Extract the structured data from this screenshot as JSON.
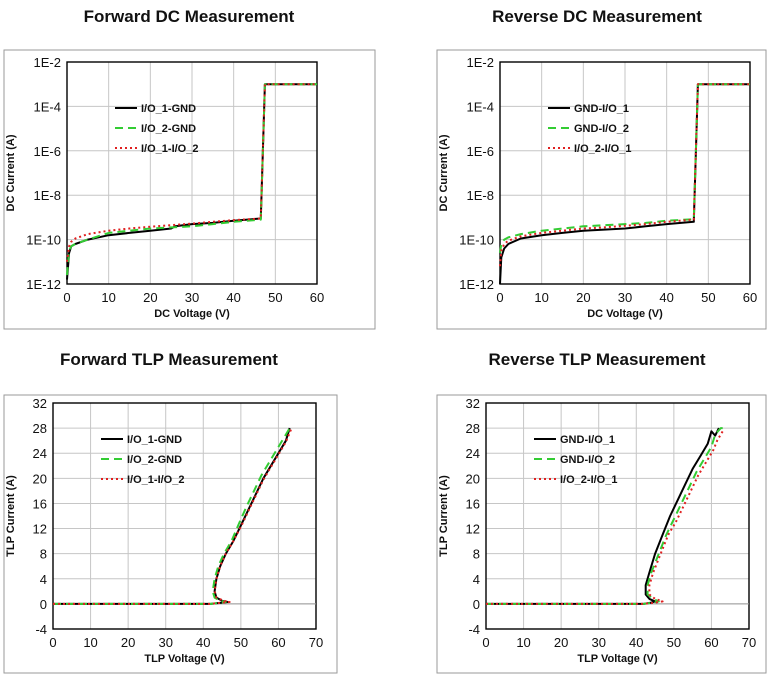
{
  "chart_data": [
    {
      "type": "line",
      "title": "Forward DC Measurement",
      "xlabel": "DC Voltage (V)",
      "ylabel": "DC Current (A)",
      "xlim": [
        0,
        60
      ],
      "ylim": [
        -12,
        -2
      ],
      "y_scale": "log10",
      "x_ticks": [
        "0",
        "10",
        "20",
        "30",
        "40",
        "50",
        "60"
      ],
      "y_ticks": [
        "1E-12",
        "1E-10",
        "1E-8",
        "1E-6",
        "1E-4",
        "1E-2"
      ],
      "grid": true,
      "legend": "top-left",
      "series": [
        {
          "name": "I/O_1-GND",
          "color": "#000000",
          "style": "solid",
          "x": [
            0,
            0.5,
            1,
            2,
            5,
            10,
            15,
            20,
            25,
            26,
            30,
            35,
            40,
            46.5,
            47.5,
            50,
            55,
            60
          ],
          "y": [
            -11.8,
            -10.6,
            -10.3,
            -10.2,
            -10.0,
            -9.8,
            -9.7,
            -9.6,
            -9.5,
            -9.4,
            -9.3,
            -9.25,
            -9.15,
            -9.05,
            -3.0,
            -3.0,
            -3.0,
            -3.0
          ]
        },
        {
          "name": "I/O_2-GND",
          "color": "#33CC33",
          "style": "dashed",
          "x": [
            0,
            0.5,
            1,
            2,
            5,
            10,
            15,
            20,
            25,
            30,
            35,
            40,
            46.5,
            47.5,
            50,
            55,
            60
          ],
          "y": [
            -11.6,
            -10.5,
            -10.3,
            -10.2,
            -10.0,
            -9.7,
            -9.6,
            -9.5,
            -9.45,
            -9.4,
            -9.3,
            -9.2,
            -9.1,
            -3.0,
            -3.0,
            -3.0,
            -3.0
          ]
        },
        {
          "name": "I/O_1-I/O_2",
          "color": "#E02020",
          "style": "dotted",
          "x": [
            0,
            0.5,
            1,
            2,
            5,
            10,
            15,
            20,
            25,
            30,
            35,
            40,
            46.5,
            47.5,
            50,
            55,
            60
          ],
          "y": [
            -11.0,
            -10.3,
            -10.1,
            -9.95,
            -9.75,
            -9.6,
            -9.5,
            -9.42,
            -9.35,
            -9.28,
            -9.2,
            -9.12,
            -9.05,
            -3.0,
            -3.0,
            -3.0,
            -3.0
          ]
        }
      ]
    },
    {
      "type": "line",
      "title": "Reverse DC Measurement",
      "xlabel": "DC Voltage (V)",
      "ylabel": "DC Current (A)",
      "xlim": [
        0,
        60
      ],
      "ylim": [
        -12,
        -2
      ],
      "y_scale": "log10",
      "x_ticks": [
        "0",
        "10",
        "20",
        "30",
        "40",
        "50",
        "60"
      ],
      "y_ticks": [
        "1E-12",
        "1E-10",
        "1E-8",
        "1E-6",
        "1E-4",
        "1E-2"
      ],
      "grid": true,
      "legend": "top-left",
      "series": [
        {
          "name": "GND-I/O_1",
          "color": "#000000",
          "style": "solid",
          "x": [
            0,
            0.3,
            1,
            2,
            5,
            10,
            15,
            20,
            25,
            30,
            35,
            40,
            46.5,
            47.5,
            50,
            55,
            60
          ],
          "y": [
            -12.0,
            -10.8,
            -10.4,
            -10.2,
            -9.95,
            -9.8,
            -9.7,
            -9.6,
            -9.55,
            -9.5,
            -9.4,
            -9.3,
            -9.2,
            -3.0,
            -3.0,
            -3.0,
            -3.0
          ]
        },
        {
          "name": "GND-I/O_2",
          "color": "#33CC33",
          "style": "dashed",
          "x": [
            0,
            0.3,
            1,
            2,
            5,
            10,
            15,
            20,
            25,
            30,
            35,
            40,
            46.5,
            47.5,
            50,
            55,
            60
          ],
          "y": [
            -10.6,
            -10.2,
            -10.0,
            -9.9,
            -9.75,
            -9.6,
            -9.5,
            -9.4,
            -9.35,
            -9.3,
            -9.25,
            -9.15,
            -9.08,
            -3.0,
            -3.0,
            -3.0,
            -3.0
          ]
        },
        {
          "name": "I/O_2-I/O_1",
          "color": "#E02020",
          "style": "dotted",
          "x": [
            0,
            0.3,
            1,
            2,
            5,
            10,
            15,
            20,
            25,
            30,
            35,
            40,
            46.5,
            47.5,
            50,
            55,
            60
          ],
          "y": [
            -11.2,
            -10.5,
            -10.2,
            -10.05,
            -9.85,
            -9.7,
            -9.6,
            -9.5,
            -9.45,
            -9.38,
            -9.3,
            -9.2,
            -9.1,
            -3.0,
            -3.0,
            -3.0,
            -3.0
          ]
        }
      ]
    },
    {
      "type": "line",
      "title": "Forward TLP Measurement",
      "xlabel": "TLP Voltage (V)",
      "ylabel": "TLP Current (A)",
      "xlim": [
        0,
        70
      ],
      "ylim": [
        -4,
        32
      ],
      "x_ticks": [
        "0",
        "10",
        "20",
        "30",
        "40",
        "50",
        "60",
        "70"
      ],
      "y_ticks": [
        "-4",
        "0",
        "4",
        "8",
        "12",
        "16",
        "20",
        "24",
        "28",
        "32"
      ],
      "grid": true,
      "legend": "top-left",
      "series": [
        {
          "name": "I/O_1-GND",
          "color": "#000000",
          "style": "solid",
          "x": [
            0,
            20,
            42,
            45,
            46.5,
            45,
            43.5,
            43,
            43.5,
            44.5,
            46,
            48,
            50,
            52,
            54,
            56,
            58,
            60,
            62,
            63
          ],
          "y": [
            0,
            0,
            0,
            0.2,
            0.3,
            0.5,
            1,
            2,
            4,
            6,
            8,
            10,
            12.5,
            15,
            17.5,
            20,
            22,
            24,
            26,
            28
          ]
        },
        {
          "name": "I/O_2-GND",
          "color": "#33CC33",
          "style": "dashed",
          "x": [
            0,
            20,
            42,
            45,
            46,
            44.5,
            43,
            42.5,
            43,
            44,
            45.5,
            47.5,
            49.5,
            51.5,
            53.5,
            55.5,
            57.5,
            59.5,
            61.5,
            63
          ],
          "y": [
            0,
            0,
            0,
            0.2,
            0.3,
            0.5,
            1,
            2,
            4,
            6,
            8,
            10,
            12.8,
            15.5,
            18,
            20.5,
            22.5,
            24.5,
            26.5,
            28
          ]
        },
        {
          "name": "I/O_1-I/O_2",
          "color": "#E02020",
          "style": "dotted",
          "x": [
            0,
            20,
            42,
            45,
            47,
            45.5,
            43.5,
            43,
            43.5,
            44.5,
            46,
            48,
            50,
            52,
            54,
            56,
            58,
            60,
            62,
            63.5
          ],
          "y": [
            0,
            0,
            0,
            0.2,
            0.3,
            0.5,
            1,
            2,
            4,
            6,
            8,
            10,
            12.3,
            14.8,
            17.3,
            19.8,
            21.8,
            23.8,
            25.8,
            28
          ]
        }
      ]
    },
    {
      "type": "line",
      "title": "Reverse TLP Measurement",
      "xlabel": "TLP Voltage (V)",
      "ylabel": "TLP Current (A)",
      "xlim": [
        0,
        70
      ],
      "ylim": [
        -4,
        32
      ],
      "x_ticks": [
        "0",
        "10",
        "20",
        "30",
        "40",
        "50",
        "60",
        "70"
      ],
      "y_ticks": [
        "-4",
        "0",
        "4",
        "8",
        "12",
        "16",
        "20",
        "24",
        "28",
        "32"
      ],
      "grid": true,
      "legend": "top-left",
      "series": [
        {
          "name": "GND-I/O_1",
          "color": "#000000",
          "style": "solid",
          "x": [
            0,
            20,
            42,
            44,
            45,
            43.5,
            42.5,
            42.5,
            43.5,
            45,
            47,
            49,
            51,
            53,
            55,
            57,
            59,
            60,
            61,
            62
          ],
          "y": [
            0,
            0,
            0,
            0.2,
            0.4,
            0.8,
            1.5,
            3,
            5,
            8,
            11,
            14,
            16.5,
            19,
            21.5,
            23.5,
            25.5,
            27.5,
            26.8,
            28
          ]
        },
        {
          "name": "GND-I/O_2",
          "color": "#33CC33",
          "style": "dashed",
          "x": [
            0,
            20,
            42,
            44.5,
            46,
            44.5,
            43,
            43,
            44,
            46,
            48,
            50,
            52,
            54,
            56,
            58,
            60,
            61,
            62.5,
            63
          ],
          "y": [
            0,
            0,
            0,
            0.2,
            0.4,
            0.8,
            1.5,
            3,
            5,
            8,
            11,
            13.5,
            16,
            18.5,
            21,
            23,
            25,
            27,
            28,
            28
          ]
        },
        {
          "name": "I/O_2-I/O_1",
          "color": "#E02020",
          "style": "dotted",
          "x": [
            0,
            20,
            42,
            45,
            47,
            45,
            43.5,
            43.5,
            44.5,
            46.5,
            48.5,
            50.5,
            52.5,
            54.5,
            56.5,
            58.5,
            60.5,
            61.5,
            62.5,
            63
          ],
          "y": [
            0,
            0,
            0,
            0.2,
            0.4,
            0.8,
            1.5,
            3,
            5,
            8,
            11,
            13,
            15.5,
            18,
            20.5,
            22.5,
            24.5,
            26,
            27,
            27.5
          ]
        }
      ]
    }
  ]
}
